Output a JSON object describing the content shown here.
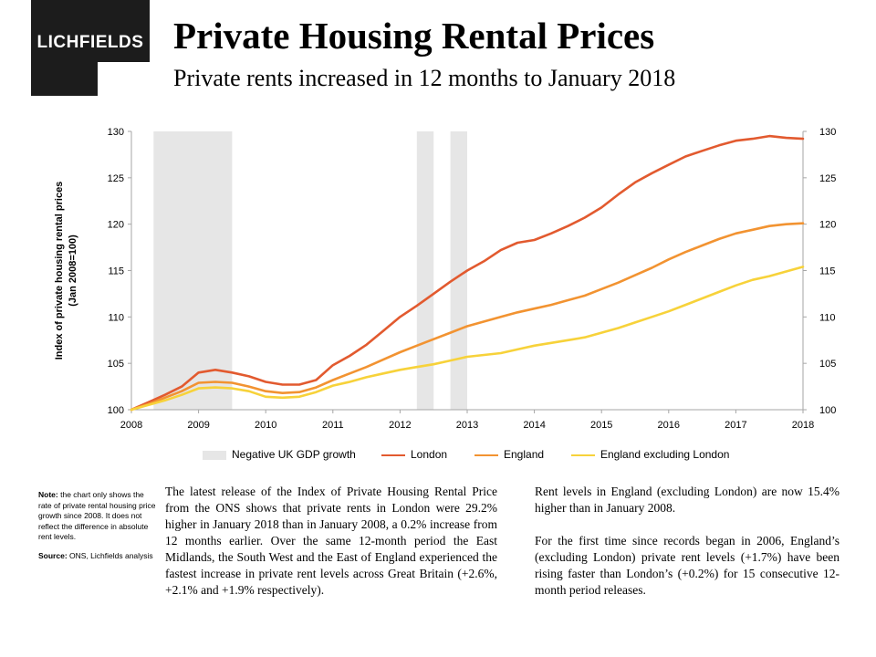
{
  "brand": {
    "logo_text": "LICHFIELDS"
  },
  "header": {
    "title": "Private Housing Rental Prices",
    "subtitle": "Private rents increased in 12 months to January 2018"
  },
  "colors": {
    "london": "#e25a2f",
    "england": "#f29331",
    "england_ex_london": "#f7d23a",
    "recession": "#e6e6e6",
    "axis": "#a6a6a6"
  },
  "chart_data": {
    "type": "line",
    "title": "",
    "xlabel": "",
    "ylabel": "Index of private housing rental prices (Jan 2008=100)",
    "ylim": [
      100,
      130
    ],
    "xlim": [
      2008,
      2018
    ],
    "y_ticks": [
      100,
      105,
      110,
      115,
      120,
      125,
      130
    ],
    "x_ticks": [
      "2008",
      "2009",
      "2010",
      "2011",
      "2012",
      "2013",
      "2014",
      "2015",
      "2016",
      "2017",
      "2018"
    ],
    "secondary_y_axis": true,
    "grid": false,
    "legend_position": "bottom",
    "shaded_periods": {
      "name": "Negative UK GDP growth",
      "ranges": [
        [
          2008.33,
          2009.5
        ],
        [
          2012.25,
          2012.5
        ],
        [
          2012.75,
          2013.0
        ]
      ]
    },
    "series": [
      {
        "name": "London",
        "color": "#e25a2f",
        "x": [
          2008,
          2008.25,
          2008.5,
          2008.75,
          2009,
          2009.25,
          2009.5,
          2009.75,
          2010,
          2010.25,
          2010.5,
          2010.75,
          2011,
          2011.25,
          2011.5,
          2011.75,
          2012,
          2012.25,
          2012.5,
          2012.75,
          2013,
          2013.25,
          2013.5,
          2013.75,
          2014,
          2014.25,
          2014.5,
          2014.75,
          2015,
          2015.25,
          2015.5,
          2015.75,
          2016,
          2016.25,
          2016.5,
          2016.75,
          2017,
          2017.25,
          2017.5,
          2017.75,
          2018
        ],
        "y": [
          100,
          100.8,
          101.6,
          102.5,
          104.0,
          104.3,
          104.0,
          103.6,
          103.0,
          102.7,
          102.7,
          103.2,
          104.8,
          105.8,
          107.0,
          108.5,
          110.0,
          111.2,
          112.5,
          113.8,
          115.0,
          116.0,
          117.2,
          118.0,
          118.3,
          119.0,
          119.8,
          120.7,
          121.8,
          123.2,
          124.5,
          125.5,
          126.4,
          127.3,
          127.9,
          128.5,
          129.0,
          129.2,
          129.5,
          129.3,
          129.2
        ]
      },
      {
        "name": "England",
        "color": "#f29331",
        "x": [
          2008,
          2008.25,
          2008.5,
          2008.75,
          2009,
          2009.25,
          2009.5,
          2009.75,
          2010,
          2010.25,
          2010.5,
          2010.75,
          2011,
          2011.25,
          2011.5,
          2011.75,
          2012,
          2012.25,
          2012.5,
          2012.75,
          2013,
          2013.25,
          2013.5,
          2013.75,
          2014,
          2014.25,
          2014.5,
          2014.75,
          2015,
          2015.25,
          2015.5,
          2015.75,
          2016,
          2016.25,
          2016.5,
          2016.75,
          2017,
          2017.25,
          2017.5,
          2017.75,
          2018
        ],
        "y": [
          100,
          100.6,
          101.3,
          102.0,
          102.9,
          103.0,
          102.9,
          102.5,
          102.0,
          101.8,
          101.9,
          102.4,
          103.2,
          103.9,
          104.6,
          105.4,
          106.2,
          106.9,
          107.6,
          108.3,
          109.0,
          109.5,
          110.0,
          110.5,
          110.9,
          111.3,
          111.8,
          112.3,
          113.0,
          113.7,
          114.5,
          115.3,
          116.2,
          117.0,
          117.7,
          118.4,
          119.0,
          119.4,
          119.8,
          120.0,
          120.1
        ]
      },
      {
        "name": "England excluding London",
        "color": "#f7d23a",
        "x": [
          2008,
          2008.25,
          2008.5,
          2008.75,
          2009,
          2009.25,
          2009.5,
          2009.75,
          2010,
          2010.25,
          2010.5,
          2010.75,
          2011,
          2011.25,
          2011.5,
          2011.75,
          2012,
          2012.25,
          2012.5,
          2012.75,
          2013,
          2013.25,
          2013.5,
          2013.75,
          2014,
          2014.25,
          2014.5,
          2014.75,
          2015,
          2015.25,
          2015.5,
          2015.75,
          2016,
          2016.25,
          2016.5,
          2016.75,
          2017,
          2017.25,
          2017.5,
          2017.75,
          2018
        ],
        "y": [
          100,
          100.5,
          101.0,
          101.6,
          102.3,
          102.4,
          102.3,
          102.0,
          101.4,
          101.3,
          101.4,
          101.9,
          102.6,
          103.0,
          103.5,
          103.9,
          104.3,
          104.6,
          104.9,
          105.3,
          105.7,
          105.9,
          106.1,
          106.5,
          106.9,
          107.2,
          107.5,
          107.8,
          108.3,
          108.8,
          109.4,
          110.0,
          110.6,
          111.3,
          112.0,
          112.7,
          113.4,
          114.0,
          114.4,
          114.9,
          115.4
        ]
      }
    ]
  },
  "note": {
    "note_label": "Note:",
    "note_text": "the chart only shows the rate of private rental housing price growth since 2008. It does not reflect the difference in absolute rent levels.",
    "source_label": "Source:",
    "source_text": "ONS, Lichfields analysis"
  },
  "body": {
    "para1": "The latest release of the Index of Private Housing Rental Price from the ONS shows that private rents in London were 29.2% higher in January 2018 than in January 2008, a 0.2% increase from 12 months earlier. Over the same 12-month period the East Midlands, the South West and the East of England experienced the fastest increase in private rent levels across Great Britain (+2.6%, +2.1% and +1.9% respectively).",
    "para2": "Rent levels in England (excluding London) are now 15.4% higher than in January 2008.",
    "para3": "For the first time since records began in 2006, England’s (excluding London) private rent levels (+1.7%) have been rising faster than London’s (+0.2%) for 15 consecutive 12-month period releases."
  }
}
